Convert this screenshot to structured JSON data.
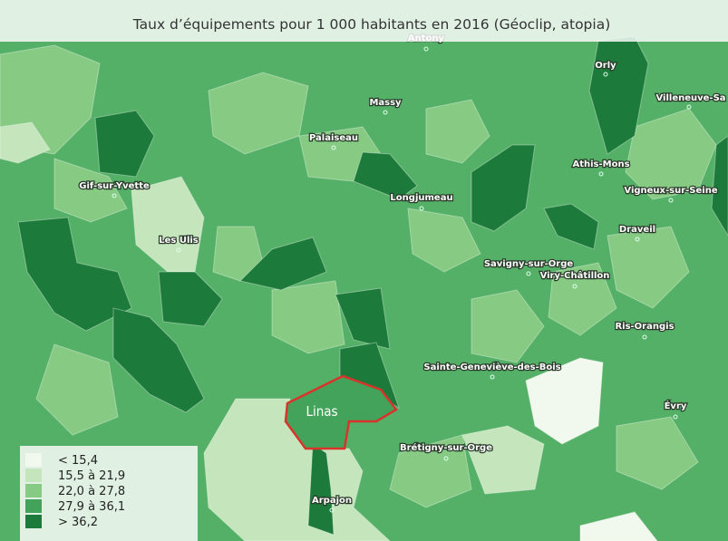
{
  "title": "Taux d’équipements pour 1 000 habitants en 2016 (Géoclip, atopia)",
  "towns": [
    "Antony",
    "Orly",
    "Villeneuve-Sa",
    "Massy",
    "Palaiseau",
    "Athis-Mons",
    "Gif-sur-Yvette",
    "Vigneux-sur-Seine",
    "Longjumeau",
    "Draveil",
    "Les Ulis",
    "Savigny-sur-Orge",
    "Viry-Châtillon",
    "Ris-Orangis",
    "Sainte-Geneviève-des-Bois",
    "Évry",
    "Brétigny-sur-Orge",
    "Arpajon"
  ],
  "highlight": "Linas",
  "legend": [
    {
      "label": "< 15,4",
      "color": "#f1f8ee"
    },
    {
      "label": "15,5 à 21,9",
      "color": "#c5e5bd"
    },
    {
      "label": "22,0 à 27,8",
      "color": "#86ca84"
    },
    {
      "label": "27,9 à 36,1",
      "color": "#43a35a"
    },
    {
      "label": "> 36,2",
      "color": "#1c7a3b"
    }
  ]
}
